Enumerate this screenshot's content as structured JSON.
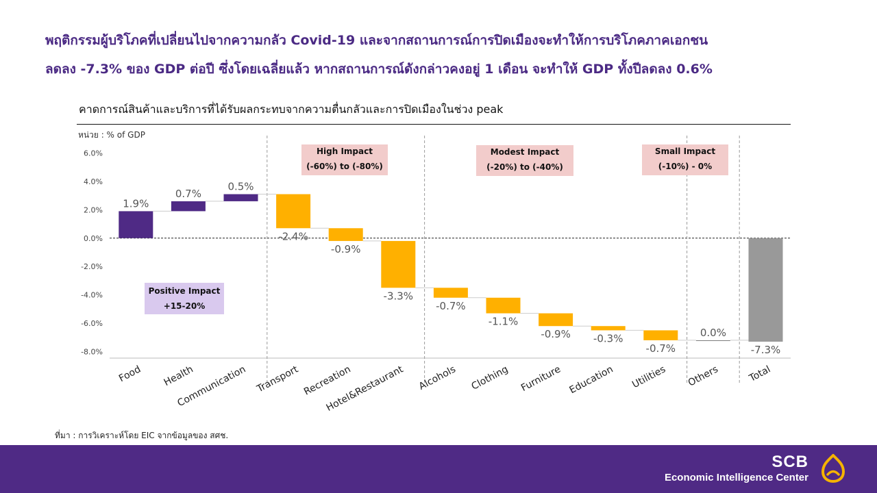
{
  "headline": {
    "line1": "พฤติกรรมผู้บริโภคที่เปลี่ยนไปจากความกลัว Covid-19 และจากสถานการณ์การปิดเมืองจะทำให้การบริโภคภาคเอกชน",
    "line2": "ลดลง -7.3% ของ GDP ต่อปี ซึ่งโดยเฉลี่ยแล้ว หากสถานการณ์ดังกล่าวคงอยู่ 1 เดือน จะทำให้ GDP ทั้งปีลดลง 0.6%"
  },
  "impact_boxes": {
    "positive": {
      "label": "Positive Impact",
      "range": "+15-20%"
    },
    "high": {
      "label": "High Impact",
      "range": "(-60%) to (-80%)"
    },
    "modest": {
      "label": "Modest Impact",
      "range": "(-20%) to (-40%)"
    },
    "small": {
      "label": "Small Impact",
      "range": "(-10%) - 0%"
    }
  },
  "source": "ที่มา : การวิเคราะห์โดย EIC จากข้อมูลของ สศช.",
  "footer": {
    "brand": "SCB",
    "subtitle": "Economic Intelligence Center"
  },
  "colors": {
    "positive": "#4f2a85",
    "negative": "#ffb000",
    "total": "#999999",
    "footer": "#4f2a85"
  },
  "chart_data": {
    "type": "bar",
    "subtype": "waterfall",
    "title": "คาดการณ์สินค้าและบริการที่ได้รับผลกระทบจากความตื่นกลัวและการปิดเมืองในช่วง peak",
    "ylabel": "หน่วย : % of GDP",
    "ylim": [
      -8.0,
      6.0
    ],
    "yticks": [
      "6.0%",
      "4.0%",
      "2.0%",
      "0.0%",
      "-2.0%",
      "-4.0%",
      "-6.0%",
      "-8.0%"
    ],
    "categories": [
      "Food",
      "Health",
      "Communication",
      "Transport",
      "Recreation",
      "Hotel&Restaurant",
      "Alcohols",
      "Clothing",
      "Furniture",
      "Education",
      "Utilities",
      "Others",
      "Total"
    ],
    "values": [
      1.9,
      0.7,
      0.5,
      -2.4,
      -0.9,
      -3.3,
      -0.7,
      -1.1,
      -0.9,
      -0.3,
      -0.7,
      0.0,
      -7.3
    ],
    "labels": [
      "1.9%",
      "0.7%",
      "0.5%",
      "-2.4%",
      "-0.9%",
      "-3.3%",
      "-0.7%",
      "-1.1%",
      "-0.9%",
      "-0.3%",
      "-0.7%",
      "0.0%",
      "-7.3%"
    ],
    "total_index": 12,
    "group_dividers_after": [
      "Communication",
      "Hotel&Restaurant",
      "Utilities",
      "Others"
    ]
  }
}
